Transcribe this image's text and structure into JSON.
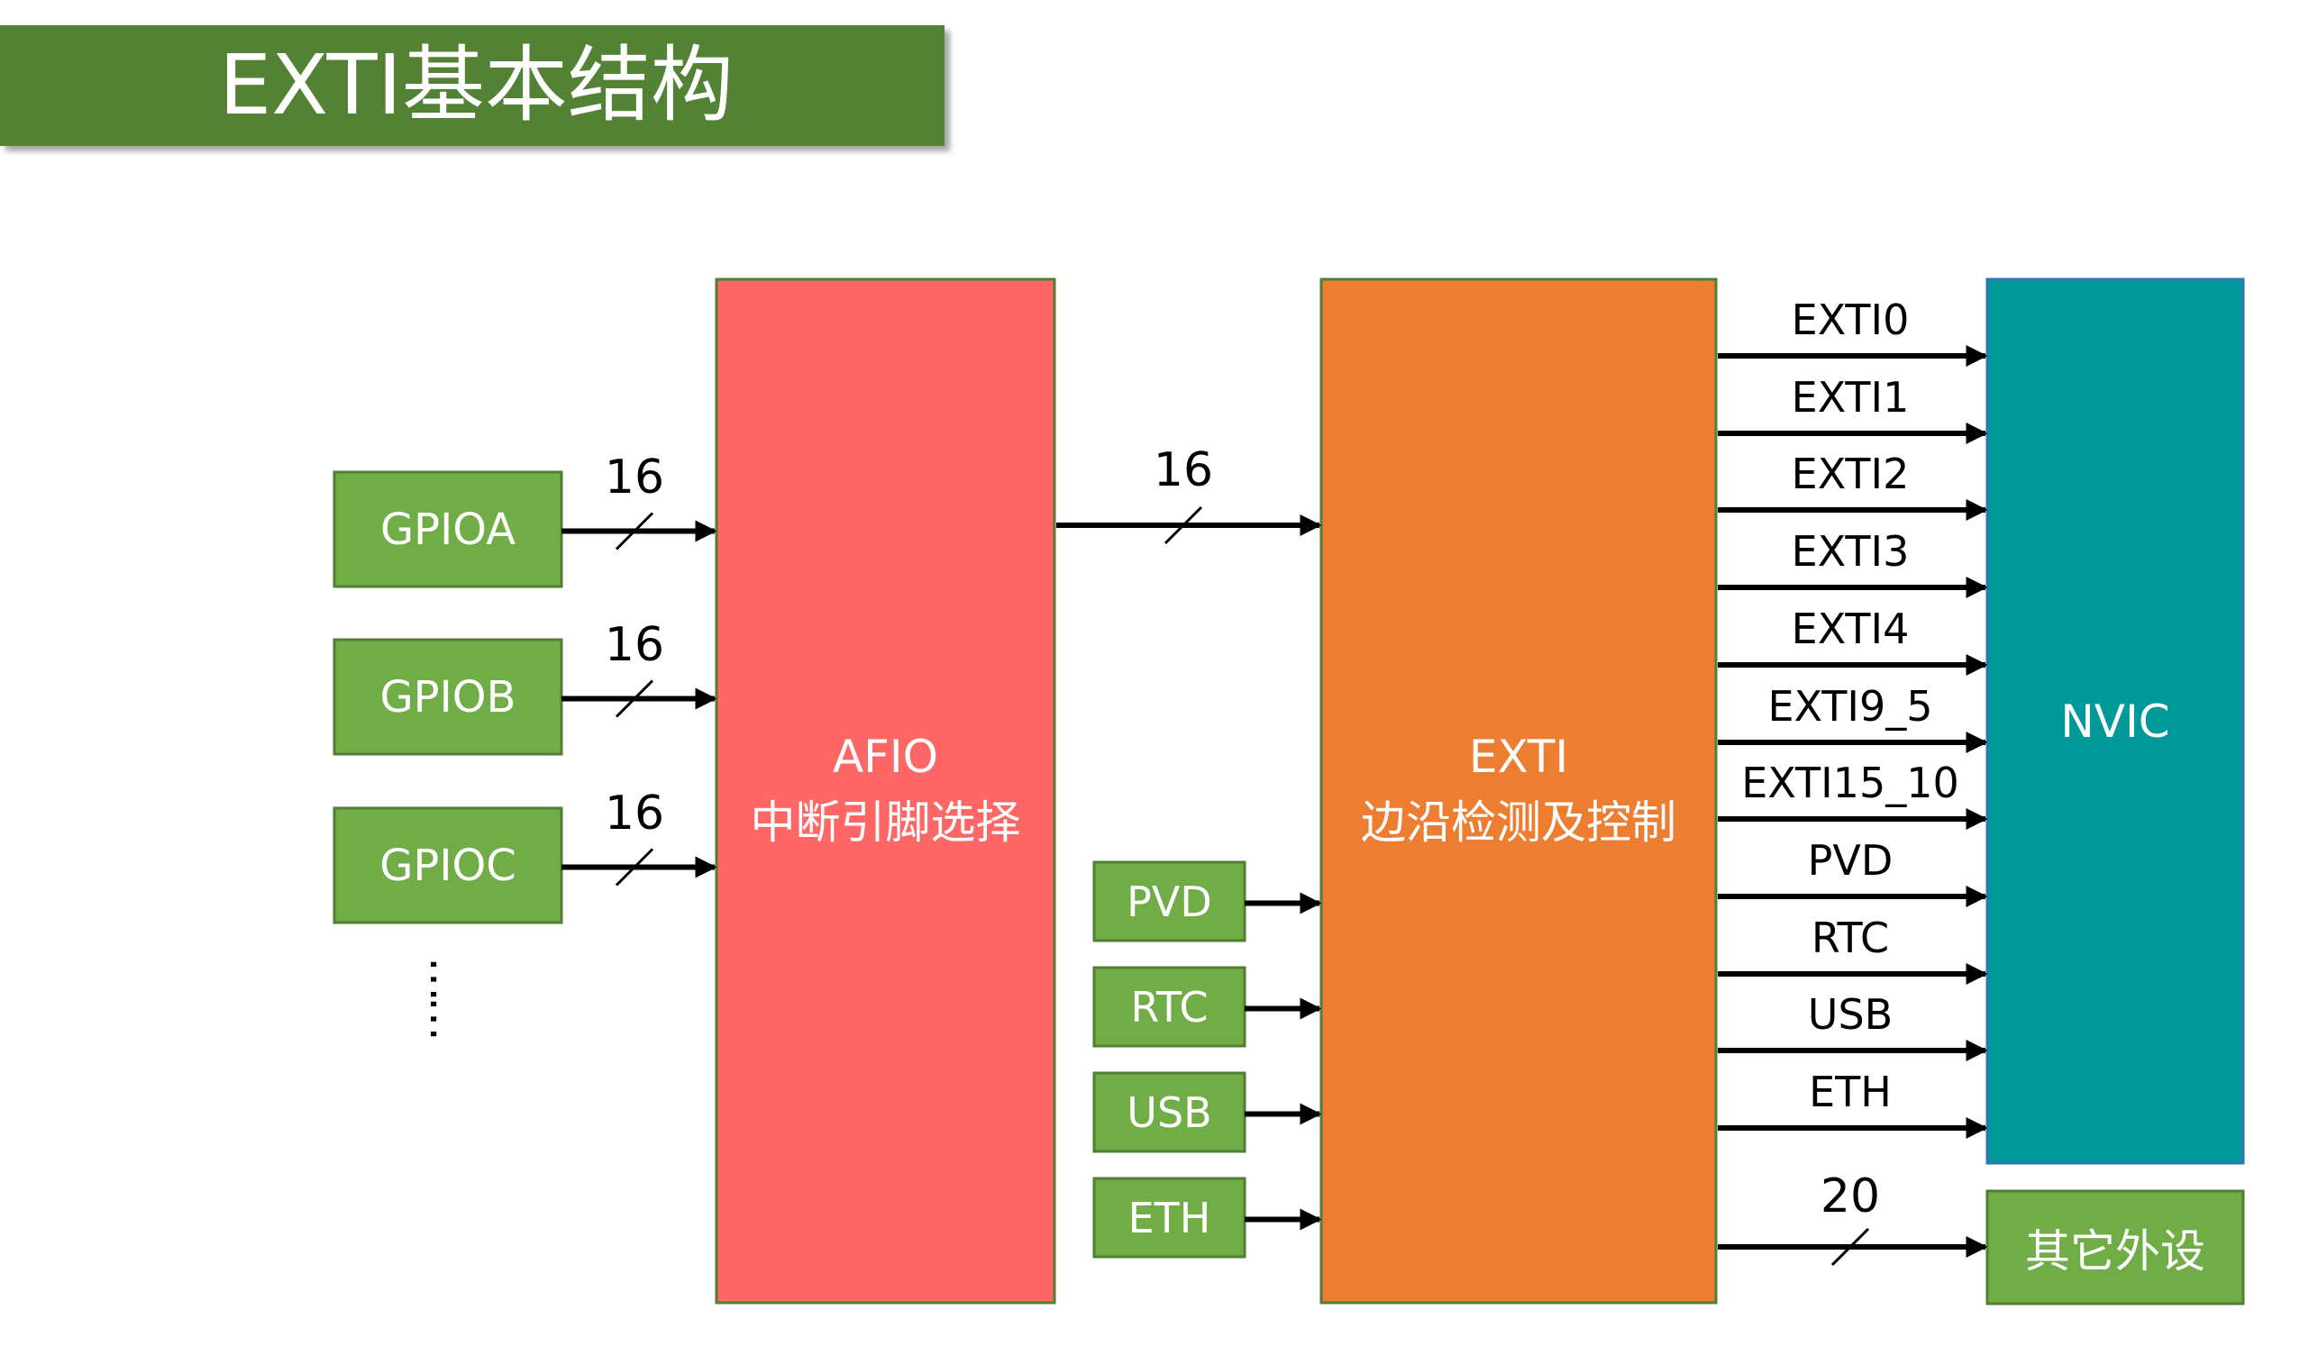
{
  "title": "EXTI基本结构",
  "colors": {
    "title_bg": "#548235",
    "green_box": "#70AD47",
    "green_border": "#507E32",
    "afio_fill": "#FF6666",
    "exti_fill": "#ED7D31",
    "nvic_fill": "#009999",
    "arrow": "#000000"
  },
  "gpio_ports": [
    "GPIOA",
    "GPIOB",
    "GPIOC"
  ],
  "gpio_ellipsis": "……",
  "bus_width_gpio": "16",
  "afio": {
    "line1": "AFIO",
    "line2": "中断引脚选择"
  },
  "afio_to_exti_width": "16",
  "extra_sources": [
    "PVD",
    "RTC",
    "USB",
    "ETH"
  ],
  "exti": {
    "line1": "EXTI",
    "line2": "边沿检测及控制"
  },
  "exti_outputs": [
    "EXTI0",
    "EXTI1",
    "EXTI2",
    "EXTI3",
    "EXTI4",
    "EXTI9_5",
    "EXTI15_10",
    "PVD",
    "RTC",
    "USB",
    "ETH"
  ],
  "nvic": {
    "label": "NVIC"
  },
  "other_peripherals": {
    "label": "其它外设",
    "bus_width": "20"
  }
}
